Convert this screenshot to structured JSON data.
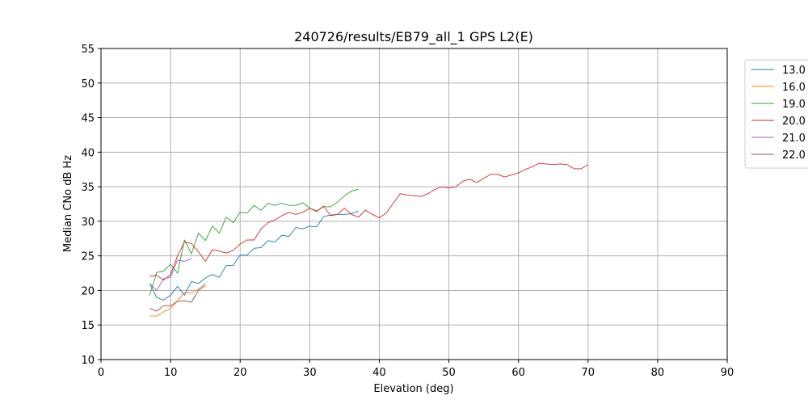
{
  "chart_data": {
    "type": "line",
    "title": "240726/results/EB79_all_1 GPS L2(E)",
    "xlabel": "Elevation (deg)",
    "ylabel": "Median CNo dB Hz",
    "xlim": [
      0,
      90
    ],
    "ylim": [
      10,
      55
    ],
    "xticks": [
      0,
      10,
      20,
      30,
      40,
      50,
      60,
      70,
      80,
      90
    ],
    "yticks": [
      10,
      15,
      20,
      25,
      30,
      35,
      40,
      45,
      50,
      55
    ],
    "grid": true,
    "legend_position": "outside-right",
    "series": [
      {
        "name": "13.0",
        "color": "#1f77b4",
        "x": [
          7,
          8,
          9,
          10,
          11,
          12,
          13,
          14,
          15,
          16,
          17,
          18,
          19,
          20,
          21,
          22,
          23,
          24,
          25,
          26,
          27,
          28,
          29,
          30,
          31,
          32,
          33,
          34,
          35,
          36,
          37
        ],
        "y": [
          21.0,
          19.0,
          18.6,
          19.3,
          20.6,
          19.3,
          21.3,
          21.0,
          21.8,
          22.3,
          21.9,
          23.6,
          23.6,
          25.1,
          25.1,
          26.1,
          26.2,
          27.2,
          27.0,
          28.0,
          27.8,
          29.1,
          28.9,
          29.3,
          29.2,
          30.7,
          30.9,
          31.0,
          31.0,
          31.1,
          31.5
        ]
      },
      {
        "name": "16.0",
        "color": "#ff7f0e",
        "x": [
          7,
          8,
          9,
          10,
          11,
          12,
          13,
          14,
          15
        ],
        "y": [
          16.3,
          16.3,
          16.9,
          17.4,
          18.5,
          19.7,
          19.6,
          20.2,
          21.0
        ]
      },
      {
        "name": "19.0",
        "color": "#2ca02c",
        "x": [
          7,
          8,
          9,
          10,
          11,
          12,
          13,
          14,
          15,
          16,
          17,
          18,
          19,
          20,
          21,
          22,
          23,
          24,
          25,
          26,
          27,
          28,
          29,
          30,
          31,
          32,
          33,
          34,
          35,
          36,
          37
        ],
        "y": [
          19.3,
          22.6,
          22.8,
          23.8,
          22.5,
          27.3,
          25.3,
          28.3,
          27.2,
          29.3,
          28.3,
          30.6,
          29.8,
          31.3,
          31.2,
          32.3,
          31.6,
          32.6,
          32.3,
          32.6,
          32.3,
          32.3,
          32.7,
          31.9,
          31.5,
          32.1,
          32.1,
          32.8,
          33.7,
          34.4,
          34.6
        ]
      },
      {
        "name": "20.0",
        "color": "#d62728",
        "x": [
          7,
          8,
          9,
          10,
          11,
          12,
          13,
          14,
          15,
          16,
          17,
          18,
          19,
          20,
          21,
          22,
          23,
          24,
          25,
          26,
          27,
          28,
          29,
          30,
          31,
          32,
          33,
          34,
          35,
          36,
          37,
          38,
          39,
          40,
          41,
          42,
          43,
          44,
          45,
          46,
          47,
          48,
          49,
          50,
          51,
          52,
          53,
          54,
          55,
          56,
          57,
          58,
          59,
          60,
          61,
          62,
          63,
          64,
          65,
          66,
          67,
          68,
          69,
          70
        ],
        "y": [
          22.0,
          22.2,
          21.5,
          22.3,
          25.0,
          27.0,
          26.8,
          25.6,
          24.2,
          25.9,
          25.7,
          25.4,
          25.8,
          26.7,
          27.3,
          27.3,
          28.9,
          29.8,
          30.2,
          30.8,
          31.3,
          31.0,
          31.3,
          31.9,
          31.4,
          32.2,
          30.8,
          31.0,
          31.9,
          31.0,
          30.6,
          31.6,
          31.0,
          30.5,
          31.2,
          32.6,
          34.0,
          33.8,
          33.7,
          33.6,
          34.0,
          34.6,
          35.0,
          34.8,
          35.0,
          35.8,
          36.1,
          35.6,
          36.2,
          36.8,
          36.8,
          36.4,
          36.7,
          37.0,
          37.5,
          37.9,
          38.4,
          38.3,
          38.2,
          38.3,
          38.2,
          37.6,
          37.6,
          38.2
        ]
      },
      {
        "name": "21.0",
        "color": "#9467bd",
        "x": [
          7,
          8,
          9,
          10,
          11,
          12,
          13
        ],
        "y": [
          21.0,
          20.0,
          21.7,
          21.9,
          24.4,
          24.2,
          24.6
        ]
      },
      {
        "name": "22.0",
        "color": "#8c564b",
        "x": [
          7,
          8,
          9,
          10,
          11,
          12,
          13,
          14,
          15
        ],
        "y": [
          17.4,
          17.0,
          17.8,
          17.8,
          18.4,
          18.5,
          18.3,
          20.0,
          20.7
        ]
      }
    ]
  }
}
